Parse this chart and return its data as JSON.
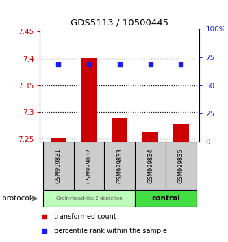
{
  "title": "GDS5113 / 10500445",
  "samples": [
    "GSM999831",
    "GSM999832",
    "GSM999833",
    "GSM999834",
    "GSM999835"
  ],
  "bar_values": [
    7.252,
    7.401,
    7.288,
    7.263,
    7.278
  ],
  "bar_base": 7.245,
  "percentile_values": [
    69,
    69,
    69,
    69,
    69
  ],
  "ylim": [
    7.245,
    7.455
  ],
  "y2lim": [
    0,
    100
  ],
  "yticks": [
    7.25,
    7.3,
    7.35,
    7.4,
    7.45
  ],
  "y2ticks": [
    0,
    25,
    50,
    75,
    100
  ],
  "ytick_labels": [
    "7.25",
    "7.3",
    "7.35",
    "7.4",
    "7.45"
  ],
  "y2tick_labels": [
    "0",
    "25",
    "50",
    "75",
    "100%"
  ],
  "bar_color": "#cc0000",
  "dot_color": "#1a1aff",
  "group1_label": "Grainyhead-like 2 depletion",
  "group2_label": "control",
  "group1_color": "#bbffbb",
  "group2_color": "#44dd44",
  "protocol_label": "protocol",
  "legend1": "transformed count",
  "legend2": "percentile rank within the sample",
  "left_tick_color": "#cc0000",
  "right_tick_color": "#1a1aff",
  "sample_box_color": "#cccccc",
  "dotted_line_color": "#000000"
}
